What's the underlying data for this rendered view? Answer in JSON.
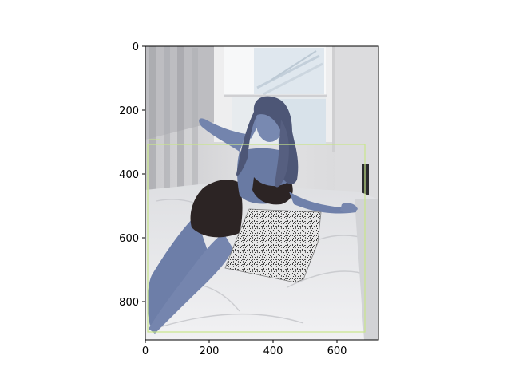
{
  "image": {
    "subject": "woman-reclining-on-bed",
    "palette": {
      "skin": "#6d7ea8",
      "hair": "#4d5676",
      "dress": "#2c2424",
      "sheets": "#e9e9ec",
      "window": "#f4f6f7"
    }
  },
  "annotation": {
    "color": "#c8e68a"
  },
  "axes": {
    "x_ticks": [
      "0",
      "200",
      "400",
      "600"
    ],
    "y_ticks": [
      "0",
      "200",
      "400",
      "600",
      "800"
    ]
  }
}
